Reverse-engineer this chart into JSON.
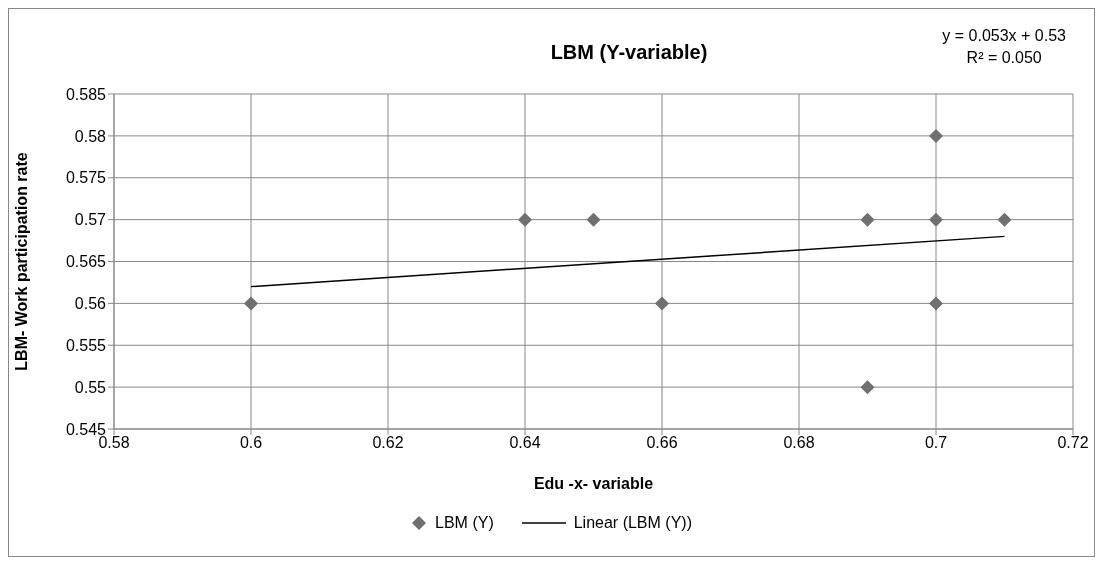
{
  "chart_data": {
    "type": "scatter",
    "title": "LBM (Y-variable)",
    "xlabel": "Edu -x- variable",
    "ylabel": "LBM- Work participation rate",
    "annotations": [
      "y = 0.053x + 0.53",
      "R² = 0.050"
    ],
    "series": [
      {
        "name": "LBM (Y)",
        "color": "#707070",
        "marker": "diamond",
        "x": [
          0.6,
          0.64,
          0.65,
          0.66,
          0.69,
          0.69,
          0.7,
          0.7,
          0.7,
          0.71
        ],
        "values": [
          0.56,
          0.57,
          0.57,
          0.56,
          0.57,
          0.55,
          0.58,
          0.57,
          0.56,
          0.57
        ]
      },
      {
        "name": "Linear (LBM (Y))",
        "type": "line",
        "color": "#000000",
        "line_style": "solid",
        "marker": "none",
        "x": [
          0.6,
          0.71
        ],
        "values": [
          0.562,
          0.568
        ]
      }
    ],
    "xlim": [
      0.58,
      0.72
    ],
    "xticks": [
      0.58,
      0.6,
      0.62,
      0.64,
      0.66,
      0.68,
      0.7,
      0.72
    ],
    "ylim": [
      0.545,
      0.585
    ],
    "yticks": [
      0.545,
      0.55,
      0.555,
      0.56,
      0.565,
      0.57,
      0.575,
      0.58,
      0.585
    ],
    "grid": true,
    "legend": "bottom"
  }
}
